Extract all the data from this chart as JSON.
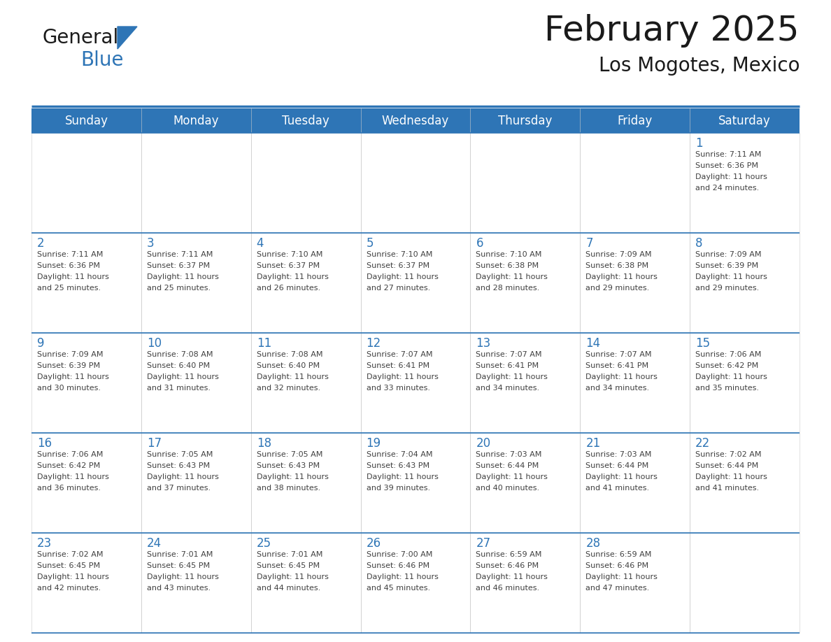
{
  "title": "February 2025",
  "subtitle": "Los Mogotes, Mexico",
  "header_color": "#2E75B6",
  "header_text_color": "#FFFFFF",
  "border_color": "#2E75B6",
  "day_headers": [
    "Sunday",
    "Monday",
    "Tuesday",
    "Wednesday",
    "Thursday",
    "Friday",
    "Saturday"
  ],
  "title_color": "#1a1a1a",
  "subtitle_color": "#1a1a1a",
  "day_num_color": "#2E75B6",
  "cell_text_color": "#404040",
  "cell_bg_color": "#FFFFFF",
  "logo_general_color": "#1a1a1a",
  "logo_blue_color": "#2E75B6",
  "logo_triangle_color": "#2E75B6",
  "calendar_data": [
    [
      null,
      null,
      null,
      null,
      null,
      null,
      {
        "day": 1,
        "sunrise": "7:11 AM",
        "sunset": "6:36 PM",
        "daylight": "11 hours\nand 24 minutes."
      }
    ],
    [
      {
        "day": 2,
        "sunrise": "7:11 AM",
        "sunset": "6:36 PM",
        "daylight": "11 hours\nand 25 minutes."
      },
      {
        "day": 3,
        "sunrise": "7:11 AM",
        "sunset": "6:37 PM",
        "daylight": "11 hours\nand 25 minutes."
      },
      {
        "day": 4,
        "sunrise": "7:10 AM",
        "sunset": "6:37 PM",
        "daylight": "11 hours\nand 26 minutes."
      },
      {
        "day": 5,
        "sunrise": "7:10 AM",
        "sunset": "6:37 PM",
        "daylight": "11 hours\nand 27 minutes."
      },
      {
        "day": 6,
        "sunrise": "7:10 AM",
        "sunset": "6:38 PM",
        "daylight": "11 hours\nand 28 minutes."
      },
      {
        "day": 7,
        "sunrise": "7:09 AM",
        "sunset": "6:38 PM",
        "daylight": "11 hours\nand 29 minutes."
      },
      {
        "day": 8,
        "sunrise": "7:09 AM",
        "sunset": "6:39 PM",
        "daylight": "11 hours\nand 29 minutes."
      }
    ],
    [
      {
        "day": 9,
        "sunrise": "7:09 AM",
        "sunset": "6:39 PM",
        "daylight": "11 hours\nand 30 minutes."
      },
      {
        "day": 10,
        "sunrise": "7:08 AM",
        "sunset": "6:40 PM",
        "daylight": "11 hours\nand 31 minutes."
      },
      {
        "day": 11,
        "sunrise": "7:08 AM",
        "sunset": "6:40 PM",
        "daylight": "11 hours\nand 32 minutes."
      },
      {
        "day": 12,
        "sunrise": "7:07 AM",
        "sunset": "6:41 PM",
        "daylight": "11 hours\nand 33 minutes."
      },
      {
        "day": 13,
        "sunrise": "7:07 AM",
        "sunset": "6:41 PM",
        "daylight": "11 hours\nand 34 minutes."
      },
      {
        "day": 14,
        "sunrise": "7:07 AM",
        "sunset": "6:41 PM",
        "daylight": "11 hours\nand 34 minutes."
      },
      {
        "day": 15,
        "sunrise": "7:06 AM",
        "sunset": "6:42 PM",
        "daylight": "11 hours\nand 35 minutes."
      }
    ],
    [
      {
        "day": 16,
        "sunrise": "7:06 AM",
        "sunset": "6:42 PM",
        "daylight": "11 hours\nand 36 minutes."
      },
      {
        "day": 17,
        "sunrise": "7:05 AM",
        "sunset": "6:43 PM",
        "daylight": "11 hours\nand 37 minutes."
      },
      {
        "day": 18,
        "sunrise": "7:05 AM",
        "sunset": "6:43 PM",
        "daylight": "11 hours\nand 38 minutes."
      },
      {
        "day": 19,
        "sunrise": "7:04 AM",
        "sunset": "6:43 PM",
        "daylight": "11 hours\nand 39 minutes."
      },
      {
        "day": 20,
        "sunrise": "7:03 AM",
        "sunset": "6:44 PM",
        "daylight": "11 hours\nand 40 minutes."
      },
      {
        "day": 21,
        "sunrise": "7:03 AM",
        "sunset": "6:44 PM",
        "daylight": "11 hours\nand 41 minutes."
      },
      {
        "day": 22,
        "sunrise": "7:02 AM",
        "sunset": "6:44 PM",
        "daylight": "11 hours\nand 41 minutes."
      }
    ],
    [
      {
        "day": 23,
        "sunrise": "7:02 AM",
        "sunset": "6:45 PM",
        "daylight": "11 hours\nand 42 minutes."
      },
      {
        "day": 24,
        "sunrise": "7:01 AM",
        "sunset": "6:45 PM",
        "daylight": "11 hours\nand 43 minutes."
      },
      {
        "day": 25,
        "sunrise": "7:01 AM",
        "sunset": "6:45 PM",
        "daylight": "11 hours\nand 44 minutes."
      },
      {
        "day": 26,
        "sunrise": "7:00 AM",
        "sunset": "6:46 PM",
        "daylight": "11 hours\nand 45 minutes."
      },
      {
        "day": 27,
        "sunrise": "6:59 AM",
        "sunset": "6:46 PM",
        "daylight": "11 hours\nand 46 minutes."
      },
      {
        "day": 28,
        "sunrise": "6:59 AM",
        "sunset": "6:46 PM",
        "daylight": "11 hours\nand 47 minutes."
      },
      null
    ]
  ],
  "fig_width": 11.88,
  "fig_height": 9.18,
  "dpi": 100
}
